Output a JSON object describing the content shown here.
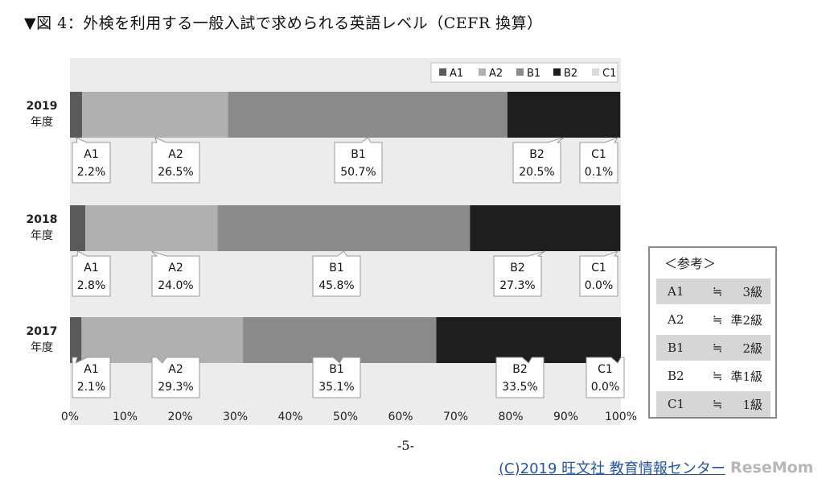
{
  "title": "▼図 4：外検を利用する一般入試で求められる英語レベル（CEFR 換算）",
  "chart_data": {
    "type": "bar",
    "orientation": "horizontal",
    "stacked": true,
    "categories": [
      {
        "line1": "2019",
        "line2": "年度"
      },
      {
        "line1": "2018",
        "line2": "年度"
      },
      {
        "line1": "2017",
        "line2": "年度"
      }
    ],
    "series": [
      {
        "name": "A1",
        "color": "#5a5a5a",
        "values": [
          2.2,
          2.8,
          2.1
        ],
        "labels": [
          "2.2%",
          "2.8%",
          "2.1%"
        ]
      },
      {
        "name": "A2",
        "color": "#b0b0b0",
        "values": [
          26.5,
          24.0,
          29.3
        ],
        "labels": [
          "26.5%",
          "24.0%",
          "29.3%"
        ]
      },
      {
        "name": "B1",
        "color": "#8a8a8a",
        "values": [
          50.7,
          45.8,
          35.1
        ],
        "labels": [
          "50.7%",
          "45.8%",
          "35.1%"
        ]
      },
      {
        "name": "B2",
        "color": "#1e1e1e",
        "values": [
          20.5,
          27.3,
          33.5
        ],
        "labels": [
          "20.5%",
          "27.3%",
          "33.5%"
        ]
      },
      {
        "name": "C1",
        "color": "#dcdcdc",
        "values": [
          0.1,
          0.0,
          0.0
        ],
        "labels": [
          "0.1%",
          "0.0%",
          "0.0%"
        ]
      }
    ],
    "xlim": [
      0,
      100
    ],
    "xticks": [
      "0%",
      "10%",
      "20%",
      "30%",
      "40%",
      "50%",
      "60%",
      "70%",
      "80%",
      "90%",
      "100%"
    ],
    "legend_position": "top-right",
    "plot_background": "#ececec"
  },
  "reference": {
    "title": "＜参考＞",
    "rows": [
      {
        "level": "A1",
        "sym": "≒",
        "grade": "3級",
        "shaded": true
      },
      {
        "level": "A2",
        "sym": "≒",
        "grade": "準2級",
        "shaded": false
      },
      {
        "level": "B1",
        "sym": "≒",
        "grade": "2級",
        "shaded": true
      },
      {
        "level": "B2",
        "sym": "≒",
        "grade": "準1級",
        "shaded": false
      },
      {
        "level": "C1",
        "sym": "≒",
        "grade": "1級",
        "shaded": true
      }
    ]
  },
  "page_number": "-5-",
  "copyright": "(C)2019 旺文社 教育情報センター",
  "watermark": "ReseMom"
}
